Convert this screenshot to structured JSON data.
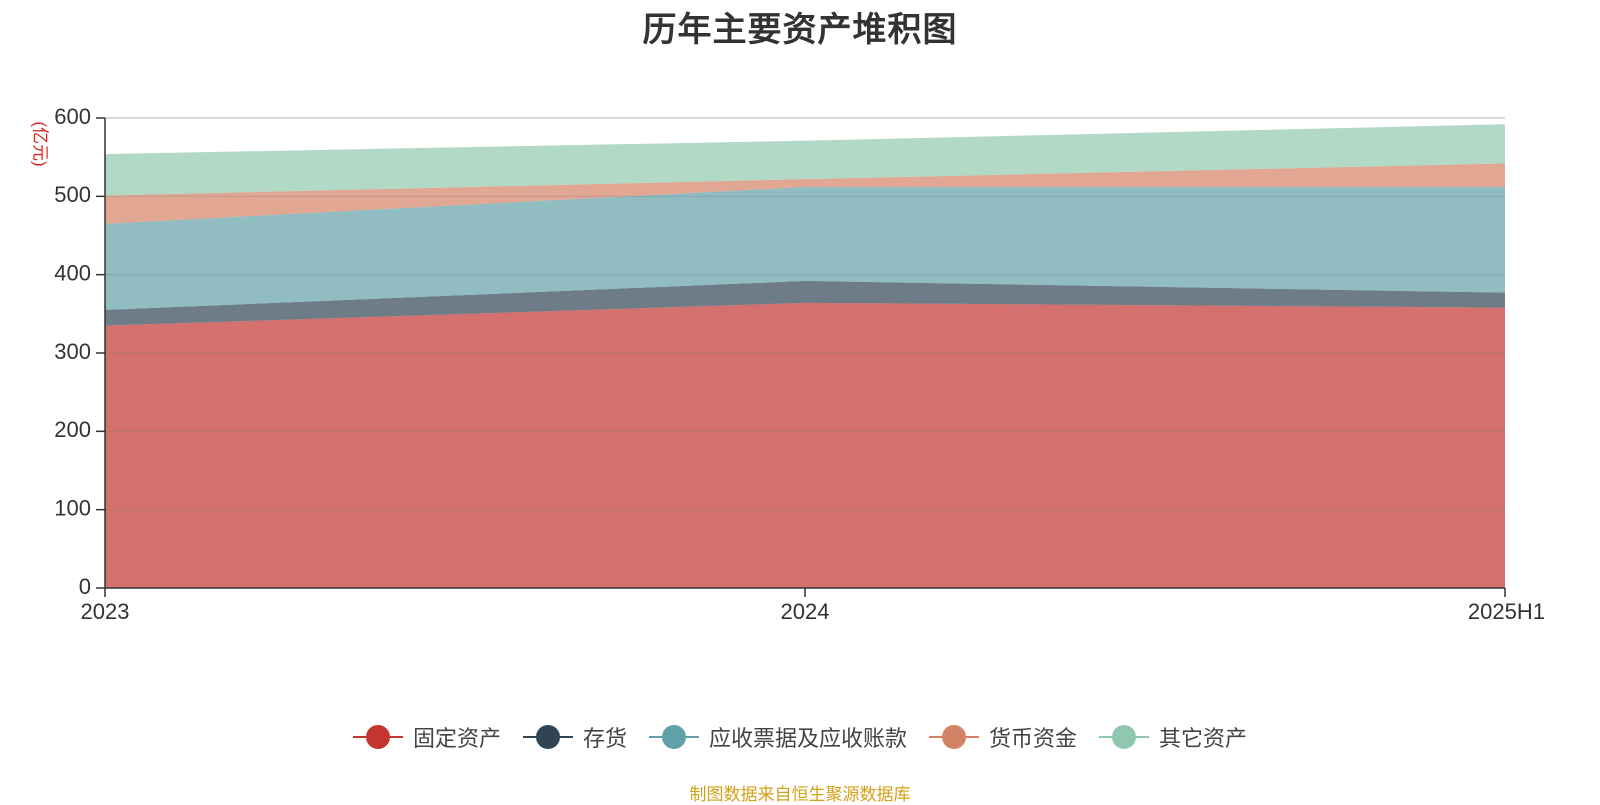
{
  "chart_data": {
    "type": "area",
    "stacked": true,
    "title": "历年主要资产堆积图",
    "unit_label": "(亿元)",
    "categories": [
      "2023",
      "2024",
      "2025H1"
    ],
    "y_ticks": [
      "0",
      "100",
      "200",
      "300",
      "400",
      "500",
      "600"
    ],
    "ylim": [
      0,
      600
    ],
    "grid": true,
    "legend_position": "bottom",
    "series": [
      {
        "name": "固定资产",
        "color": "#c23531",
        "values": [
          335,
          364,
          358
        ]
      },
      {
        "name": "存货",
        "color": "#2f4554",
        "values": [
          20,
          28,
          19
        ]
      },
      {
        "name": "应收票据及应收账款",
        "color": "#61a0a8",
        "values": [
          110,
          120,
          135
        ]
      },
      {
        "name": "货币资金",
        "color": "#d48265",
        "values": [
          36,
          10,
          30
        ]
      },
      {
        "name": "其它资产",
        "color": "#91c7ae",
        "values": [
          53,
          49,
          50
        ]
      }
    ]
  },
  "source_note": "制图数据来自恒生聚源数据库"
}
